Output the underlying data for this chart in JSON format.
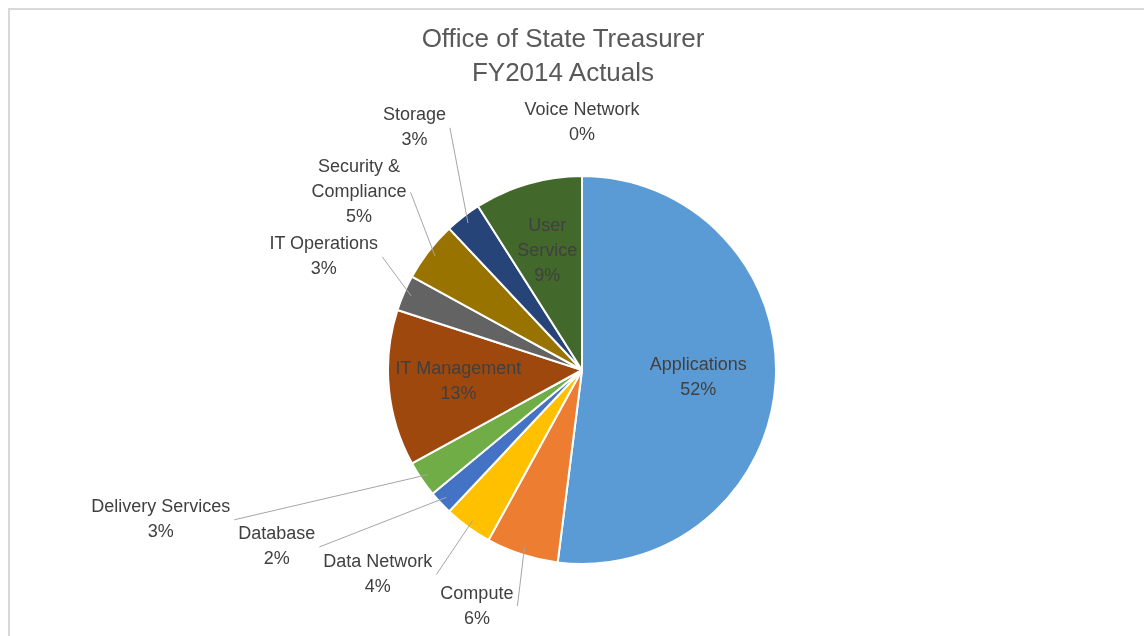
{
  "chart_data": {
    "type": "pie",
    "title": "Office of State Treasurer",
    "subtitle": "FY2014 Actuals",
    "categories": [
      "Applications",
      "Compute",
      "Data Network",
      "Database",
      "Delivery Services",
      "IT Management",
      "IT Operations",
      "Security & Compliance",
      "Storage",
      "User Service",
      "Voice Network"
    ],
    "values": [
      52,
      6,
      4,
      2,
      3,
      13,
      3,
      5,
      3,
      9,
      0
    ],
    "value_labels": [
      "52%",
      "6%",
      "4%",
      "2%",
      "3%",
      "13%",
      "3%",
      "5%",
      "3%",
      "9%",
      "0%"
    ],
    "colors": [
      "#5b9bd5",
      "#ed7d31",
      "#ffc000",
      "#4472c4",
      "#70ad47",
      "#9e480e",
      "#636363",
      "#997300",
      "#264478",
      "#43682b",
      "#698ed0"
    ],
    "legend": false
  }
}
